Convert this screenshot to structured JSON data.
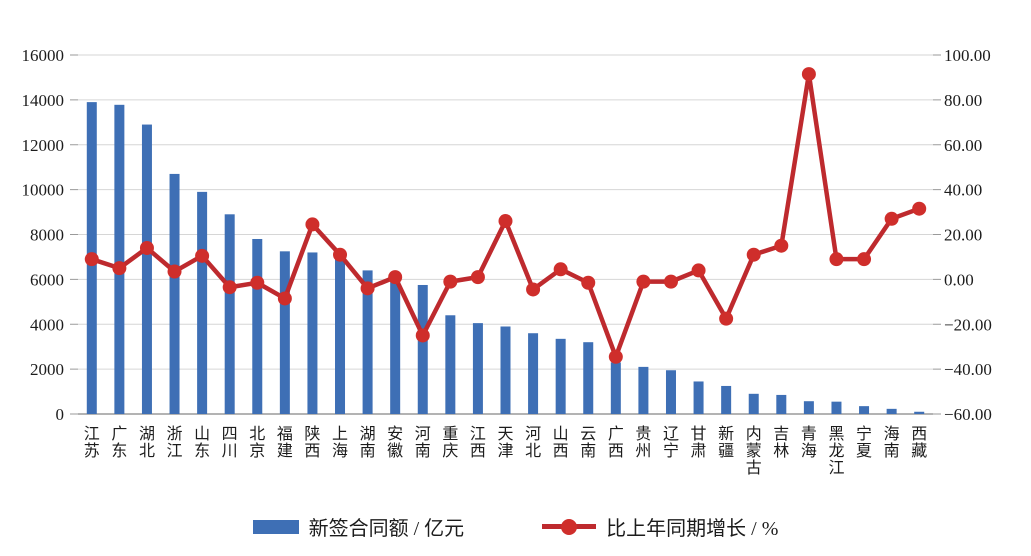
{
  "chart_data": {
    "type": "bar",
    "combo": "bar+line",
    "title": "",
    "categories": [
      "江苏",
      "广东",
      "湖北",
      "浙江",
      "山东",
      "四川",
      "北京",
      "福建",
      "陕西",
      "上海",
      "湖南",
      "安徽",
      "河南",
      "重庆",
      "江西",
      "天津",
      "河北",
      "山西",
      "云南",
      "广西",
      "贵州",
      "辽宁",
      "甘肃",
      "新疆",
      "内蒙古",
      "吉林",
      "青海",
      "黑龙江",
      "宁夏",
      "海南",
      "西藏"
    ],
    "series": [
      {
        "name": "新签合同额 / 亿元",
        "type": "bar",
        "axis": "left",
        "values": [
          13900,
          13780,
          12900,
          10700,
          9900,
          8900,
          7800,
          7250,
          7200,
          6950,
          6400,
          5900,
          5750,
          4400,
          4050,
          3900,
          3600,
          3350,
          3200,
          2300,
          2100,
          1950,
          1450,
          1250,
          900,
          850,
          570,
          550,
          350,
          230,
          100
        ]
      },
      {
        "name": "比上年同期增长 / %",
        "type": "line",
        "axis": "right",
        "values": [
          9,
          5,
          14,
          3.5,
          10.5,
          -3.5,
          -1.5,
          -8.5,
          24.5,
          11,
          -4,
          1,
          -25,
          -1,
          1,
          26,
          -4.5,
          4.5,
          -1.5,
          -34.5,
          -1,
          -1,
          4,
          -17.5,
          11,
          15,
          91.5,
          9,
          9,
          27,
          31.5
        ]
      }
    ],
    "left_axis": {
      "label": "",
      "min": 0,
      "max": 16000,
      "ticks": [
        0,
        2000,
        4000,
        6000,
        8000,
        10000,
        12000,
        14000,
        16000
      ],
      "tick_labels": [
        "0",
        "2000",
        "4000",
        "6000",
        "8000",
        "10000",
        "12000",
        "14000",
        "16000"
      ]
    },
    "right_axis": {
      "label": "",
      "min": -60,
      "max": 100,
      "ticks": [
        -60,
        -40,
        -20,
        0,
        20,
        40,
        60,
        80,
        100
      ],
      "tick_labels": [
        "−60.00",
        "−40.00",
        "−20.00",
        "0.00",
        "20.00",
        "40.00",
        "60.00",
        "80.00",
        "100.00"
      ]
    },
    "grid": true,
    "legend_position": "bottom",
    "colors": {
      "bar": "#3e6fb5",
      "line": "#be2a2e",
      "marker": "#cf2e2b",
      "grid": "#d6d6d6",
      "axis": "#9a9a9a",
      "text": "#1c1c1c"
    }
  }
}
